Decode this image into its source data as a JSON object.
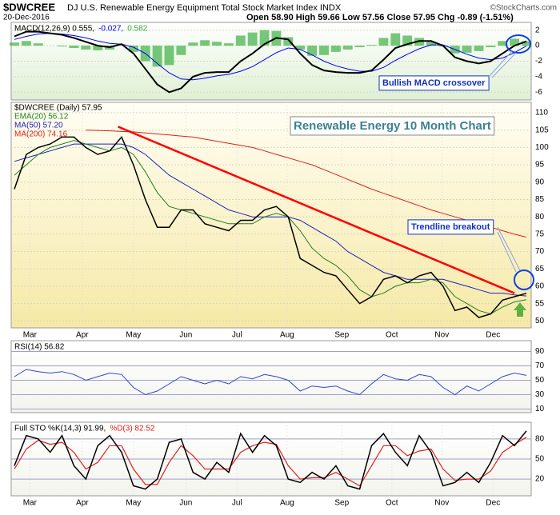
{
  "header": {
    "symbol": "$DWCREE",
    "name": "DJ U.S. Renewable Energy Equipment Total Stock Market Index INDX",
    "copyright": "©StockCharts.com",
    "date": "20-Dec-2016",
    "quote": "Open 58.90 High 59.66 Low 57.56 Close 57.95 Chg -0.89 (-1.51%)"
  },
  "chart_data": [
    {
      "type": "line",
      "title": "MACD",
      "xlim": [
        0,
        43
      ],
      "ylim": [
        -7,
        3
      ],
      "yticks": [
        2,
        0,
        -2,
        -4,
        -6
      ],
      "legend": [
        {
          "text": "MACD(12,26,9) 0.555,",
          "color": "#000000"
        },
        {
          "text": "-0.027,",
          "color": "#0000ff"
        },
        {
          "text": "0.582",
          "color": "#33aa33"
        }
      ],
      "series": [
        {
          "name": "Histogram",
          "kind": "bar",
          "color": "#3cb043",
          "values": [
            0.4,
            0.6,
            0.3,
            0,
            -0.1,
            -0.3,
            -0.5,
            -0.6,
            -0.5,
            0,
            -0.8,
            -2,
            -2.7,
            -2.5,
            -1.2,
            0.4,
            0.7,
            0.5,
            0.3,
            1.3,
            1.7,
            2.0,
            1.9,
            1.1,
            -0.5,
            -1.3,
            -1.2,
            -0.8,
            -0.5,
            -0.2,
            0.1,
            1.0,
            1.6,
            1.3,
            1.0,
            0.5,
            -0.1,
            -1.0,
            -0.9,
            -0.7,
            -0.2,
            0.6,
            0.9,
            0.582
          ]
        },
        {
          "name": "Signal",
          "kind": "line",
          "color": "#0000ff",
          "width": 1,
          "values": [
            0.8,
            1.2,
            1.5,
            1.6,
            1.5,
            1.3,
            1.0,
            0.6,
            0.3,
            0.2,
            -0.2,
            -1,
            -2.3,
            -3.5,
            -4.3,
            -4.4,
            -4.2,
            -3.9,
            -3.7,
            -3.3,
            -2.7,
            -1.8,
            -0.9,
            -0.3,
            -0.5,
            -1.2,
            -2.0,
            -2.6,
            -3.0,
            -3.3,
            -3.3,
            -2.8,
            -1.9,
            -1.1,
            -0.4,
            0.1,
            0.1,
            -0.5,
            -1.1,
            -1.6,
            -1.8,
            -1.6,
            -0.9,
            -0.027
          ]
        },
        {
          "name": "MACD",
          "kind": "line",
          "color": "#000000",
          "width": 2,
          "values": [
            1.2,
            1.8,
            1.8,
            1.6,
            1.4,
            1.0,
            0.5,
            0,
            -0.2,
            0.2,
            -1,
            -3,
            -5,
            -6,
            -5.5,
            -4,
            -3.5,
            -3.4,
            -3.4,
            -2,
            -1,
            0.2,
            1.0,
            0.8,
            -1.0,
            -2.5,
            -3.2,
            -3.4,
            -3.5,
            -3.5,
            -3.2,
            -1.8,
            -0.3,
            0.2,
            0.6,
            0.6,
            0,
            -1.5,
            -2,
            -2.3,
            -2,
            -1,
            0,
            0.555
          ]
        }
      ],
      "annotations": [
        {
          "text": "Bullish MACD crossover"
        }
      ]
    },
    {
      "type": "line",
      "title": "Price",
      "xlim": [
        0,
        43
      ],
      "ylim": [
        48,
        113
      ],
      "yticks": [
        110,
        105,
        100,
        95,
        90,
        85,
        80,
        75,
        70,
        65,
        60,
        55,
        50
      ],
      "xticks": [
        {
          "value": 1.3,
          "label": "Mar"
        },
        {
          "value": 5.7,
          "label": "Apr"
        },
        {
          "value": 10,
          "label": "May"
        },
        {
          "value": 14.4,
          "label": "Jun"
        },
        {
          "value": 18.7,
          "label": "Jul"
        },
        {
          "value": 22.9,
          "label": "Aug"
        },
        {
          "value": 27.5,
          "label": "Sep"
        },
        {
          "value": 31.7,
          "label": "Oct"
        },
        {
          "value": 35.9,
          "label": "Nov"
        },
        {
          "value": 40.2,
          "label": "Dec"
        }
      ],
      "series": [
        {
          "legend": "MA(200) 74.16",
          "kind": "line",
          "color": "#e02020",
          "width": 1,
          "values": [
            null,
            null,
            null,
            null,
            null,
            null,
            105,
            104.9,
            104.8,
            104.6,
            104.5,
            104.2,
            103.9,
            103.6,
            103.3,
            103,
            102.4,
            101.8,
            101.2,
            100.6,
            100,
            99,
            98,
            97,
            96,
            95,
            93.6,
            92.2,
            90.8,
            89.4,
            88,
            86.8,
            85.6,
            84.4,
            83.2,
            82,
            81,
            80,
            79,
            78,
            77,
            76,
            75,
            74.16
          ]
        },
        {
          "legend": "MA(50) 57.20",
          "kind": "line",
          "color": "#2020c0",
          "width": 1,
          "values": [
            96,
            97,
            98,
            99,
            100,
            101,
            101,
            101,
            101,
            101,
            100,
            98,
            95,
            92,
            90,
            88,
            86,
            84,
            82,
            81,
            80,
            80,
            80,
            80,
            79,
            77,
            75,
            73,
            70,
            68,
            66,
            64,
            63,
            62,
            62,
            62,
            62,
            61,
            60,
            59,
            58,
            58,
            57.5,
            57.2
          ]
        },
        {
          "legend": "EMA(20) 56.12",
          "kind": "line",
          "color": "#208020",
          "width": 1,
          "values": [
            92,
            95,
            98,
            100,
            101,
            102,
            101,
            100,
            99,
            100,
            98,
            93,
            87,
            83,
            82,
            81,
            80,
            79,
            78,
            78,
            78,
            80,
            81,
            80,
            76,
            71,
            68,
            66,
            63,
            59,
            57,
            58,
            60,
            61,
            61,
            62,
            61,
            57,
            55,
            53,
            52,
            54,
            55.5,
            56.12
          ]
        },
        {
          "legend": "$DWCREE (Daily) 57.95",
          "kind": "line",
          "color": "#000000",
          "width": 1.5,
          "values": [
            88,
            98,
            100,
            101,
            103,
            103,
            100,
            98,
            99,
            103,
            95,
            85,
            77,
            77,
            82,
            82,
            78,
            77,
            76,
            79,
            79,
            82,
            83,
            80,
            68,
            66,
            64,
            63,
            59,
            55,
            57,
            62,
            63,
            61,
            63,
            64,
            60,
            53,
            54,
            51,
            52,
            56,
            57,
            57.95
          ]
        }
      ],
      "trendline": {
        "x": [
          8.7,
          42
        ],
        "y": [
          106,
          58
        ],
        "color": "#ff0000"
      },
      "annotations": [
        {
          "text": "Renewable Energy 10 Month Chart"
        },
        {
          "text": "Trendline breakout"
        }
      ]
    },
    {
      "type": "line",
      "title": "RSI",
      "xlim": [
        0,
        43
      ],
      "ylim": [
        5,
        105
      ],
      "yticks": [
        90,
        70,
        50,
        30,
        10
      ],
      "legend": [
        {
          "text": "RSI(14) 56.82",
          "color": "#000000"
        }
      ],
      "series": [
        {
          "name": "RSI",
          "kind": "line",
          "color": "#3344cc",
          "width": 1,
          "values": [
            55,
            65,
            62,
            60,
            62,
            58,
            50,
            55,
            60,
            58,
            40,
            30,
            35,
            45,
            55,
            50,
            45,
            50,
            45,
            55,
            52,
            58,
            55,
            50,
            35,
            42,
            40,
            42,
            35,
            30,
            45,
            58,
            52,
            50,
            58,
            55,
            40,
            30,
            42,
            35,
            45,
            55,
            60,
            56.82
          ]
        }
      ]
    },
    {
      "type": "line",
      "title": "STO",
      "xlim": [
        0,
        43
      ],
      "ylim": [
        -5,
        105
      ],
      "yticks": [
        80,
        50,
        20
      ],
      "xticks": [
        {
          "value": 1.3,
          "label": "Mar"
        },
        {
          "value": 5.7,
          "label": "Apr"
        },
        {
          "value": 10,
          "label": "May"
        },
        {
          "value": 14.4,
          "label": "Jun"
        },
        {
          "value": 18.7,
          "label": "Jul"
        },
        {
          "value": 22.9,
          "label": "Aug"
        },
        {
          "value": 27.5,
          "label": "Sep"
        },
        {
          "value": 31.7,
          "label": "Oct"
        },
        {
          "value": 35.9,
          "label": "Nov"
        },
        {
          "value": 40.2,
          "label": "Dec"
        }
      ],
      "legend": [
        {
          "text": "Full STO %K(14,3) 91.99,",
          "color": "#000000"
        },
        {
          "text": "%D(3) 82.52",
          "color": "#e02020"
        }
      ],
      "series": [
        {
          "name": "%D",
          "kind": "line",
          "color": "#e02020",
          "width": 1.2,
          "values": [
            35,
            65,
            78,
            72,
            75,
            60,
            35,
            45,
            70,
            70,
            35,
            12,
            12,
            45,
            70,
            55,
            35,
            35,
            35,
            60,
            70,
            75,
            72,
            40,
            20,
            22,
            22,
            30,
            20,
            10,
            40,
            70,
            70,
            55,
            62,
            65,
            35,
            18,
            20,
            20,
            32,
            60,
            72,
            82.52
          ]
        },
        {
          "name": "%K",
          "kind": "line",
          "color": "#000000",
          "width": 1.5,
          "values": [
            40,
            85,
            80,
            60,
            85,
            40,
            20,
            70,
            85,
            60,
            10,
            5,
            20,
            75,
            80,
            30,
            20,
            45,
            30,
            88,
            60,
            85,
            70,
            20,
            15,
            30,
            20,
            40,
            10,
            5,
            70,
            88,
            60,
            40,
            85,
            60,
            10,
            15,
            30,
            15,
            45,
            85,
            70,
            91.99
          ]
        }
      ]
    }
  ]
}
